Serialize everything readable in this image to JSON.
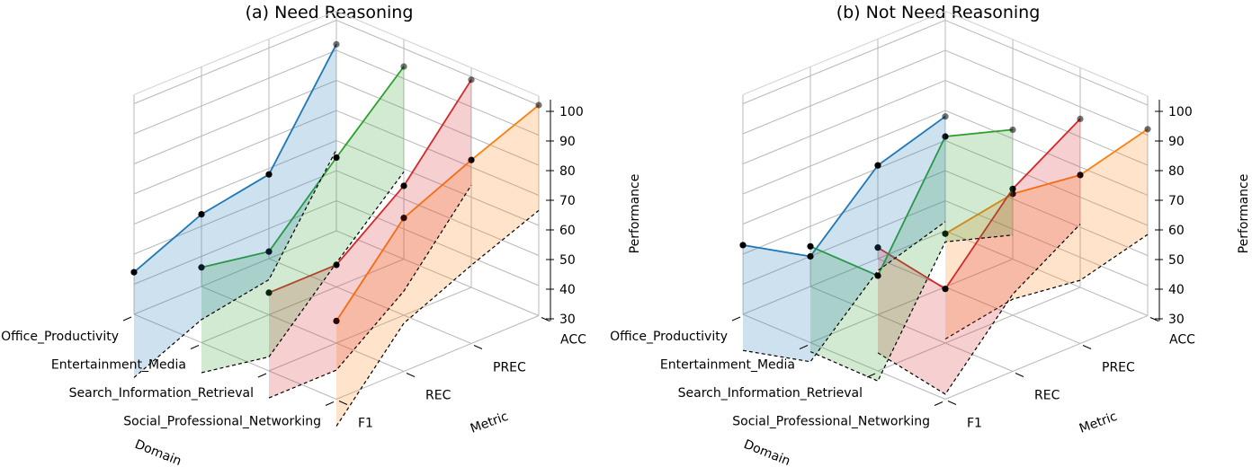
{
  "chart_data": [
    {
      "type": "line",
      "title": "(a) Need Reasoning",
      "xlabel": "Domain",
      "ylabel": "Metric",
      "zlabel": "Performance",
      "zlim": [
        30,
        100
      ],
      "domains": [
        "Office_Productivity",
        "Entertainment_Media",
        "Search_Information_Retrieval",
        "Social_Professional_Networking"
      ],
      "metrics": [
        "F1",
        "REC",
        "PREC",
        "ACC"
      ],
      "zticks": [
        "30",
        "40",
        "50",
        "60",
        "70",
        "80",
        "90",
        "100"
      ],
      "series": [
        {
          "name": "Office_Productivity",
          "color": "#1f77b4",
          "values": [
            44,
            54,
            58,
            92
          ]
        },
        {
          "name": "Entertainment_Media",
          "color": "#2ca02c",
          "values": [
            55,
            51,
            73,
            94
          ]
        },
        {
          "name": "Search_Information_Retrieval",
          "color": "#d62728",
          "values": [
            56,
            56,
            73,
            99
          ]
        },
        {
          "name": "Social_Professional_Networking",
          "color": "#ff7f0e",
          "values": [
            56,
            81,
            91,
            100
          ]
        }
      ]
    },
    {
      "type": "line",
      "title": "(b) Not Need Reasoning",
      "xlabel": "Domain",
      "ylabel": "Metric",
      "zlabel": "Performance",
      "zlim": [
        30,
        100
      ],
      "domains": [
        "Office_Productivity",
        "Entertainment_Media",
        "Search_Information_Retrieval",
        "Social_Professional_Networking"
      ],
      "metrics": [
        "F1",
        "REC",
        "PREC",
        "ACC"
      ],
      "zticks": [
        "30",
        "40",
        "50",
        "60",
        "70",
        "80",
        "90",
        "100"
      ],
      "series": [
        {
          "name": "Office_Productivity",
          "color": "#1f77b4",
          "values": [
            53,
            40,
            61,
            68
          ]
        },
        {
          "name": "Entertainment_Media",
          "color": "#2ca02c",
          "values": [
            62,
            43,
            80,
            73
          ]
        },
        {
          "name": "Search_Information_Retrieval",
          "color": "#d62728",
          "values": [
            71,
            48,
            72,
            86
          ]
        },
        {
          "name": "Social_Professional_Networking",
          "color": "#ff7f0e",
          "values": [
            85,
            89,
            86,
            92
          ]
        }
      ]
    }
  ]
}
